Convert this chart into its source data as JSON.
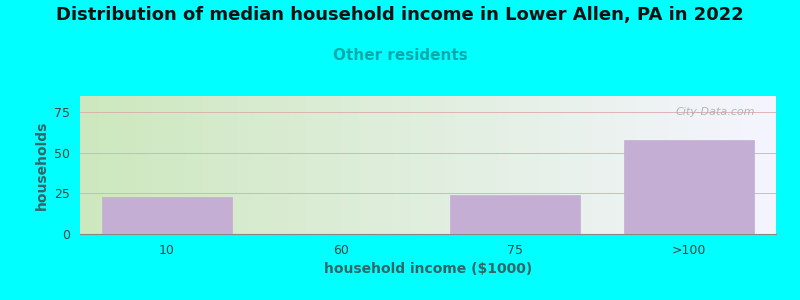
{
  "title": "Distribution of median household income in Lower Allen, PA in 2022",
  "subtitle": "Other residents",
  "xlabel": "household income ($1000)",
  "ylabel": "households",
  "categories": [
    "10",
    "60",
    "75",
    ">100"
  ],
  "values": [
    23,
    0,
    24,
    58
  ],
  "bar_color": "#c4aed4",
  "background_color": "#00ffff",
  "plot_bg_gradient_left": "#cde8be",
  "plot_bg_gradient_right": "#f5f5ff",
  "yticks": [
    0,
    25,
    50,
    75
  ],
  "ylim": [
    0,
    85
  ],
  "title_fontsize": 13,
  "subtitle_fontsize": 11,
  "subtitle_color": "#00aaaa",
  "ylabel_color": "#336666",
  "xlabel_color": "#336666",
  "axis_label_fontsize": 10,
  "watermark": "City-Data.com"
}
